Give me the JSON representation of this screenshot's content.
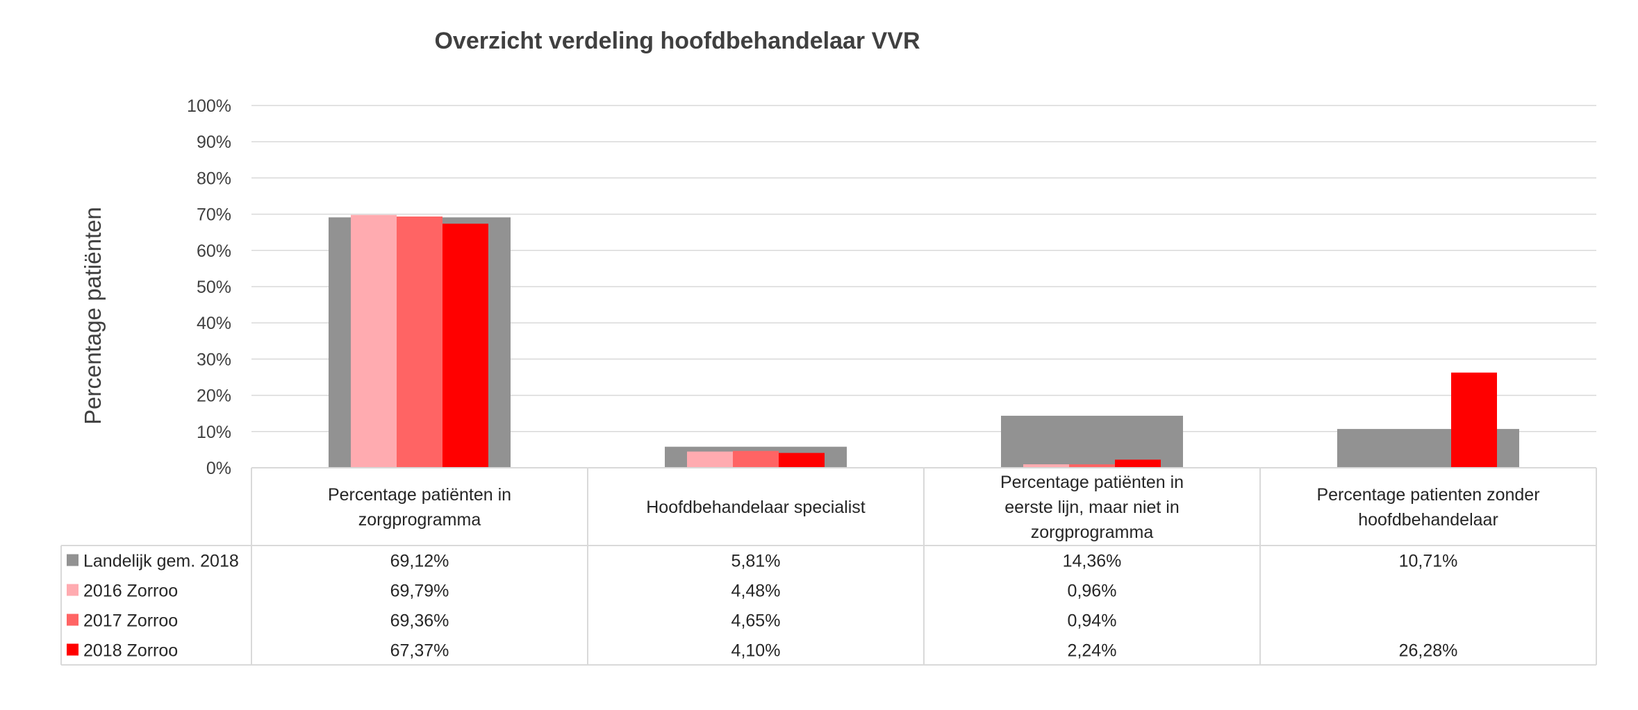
{
  "chart_data": {
    "type": "bar",
    "title": "Overzicht verdeling hoofdbehandelaar VVR",
    "ylabel": "Percentage patiënten",
    "xlabel": "",
    "ylim": [
      0,
      100
    ],
    "ytick_step": 10,
    "ytick_labels": [
      "0%",
      "10%",
      "20%",
      "30%",
      "40%",
      "50%",
      "60%",
      "70%",
      "80%",
      "90%",
      "100%"
    ],
    "grid": true,
    "legend": "data-table-left",
    "categories": [
      [
        "Percentage patiënten in",
        "zorgprogramma"
      ],
      [
        "Hoofdbehandelaar specialist"
      ],
      [
        "Percentage patiënten in",
        "eerste lijn, maar niet in",
        "zorgprogramma"
      ],
      [
        "Percentage patienten zonder",
        "hoofdbehandelaar"
      ]
    ],
    "series": [
      {
        "name": "Landelijk gem. 2018",
        "color": "#929292",
        "background": true,
        "values": [
          69.12,
          5.81,
          14.36,
          10.71
        ],
        "labels": [
          "69,12%",
          "5,81%",
          "14,36%",
          "10,71%"
        ]
      },
      {
        "name": "2016 Zorroo",
        "color": "#ffabb0",
        "values": [
          69.79,
          4.48,
          0.96,
          null
        ],
        "labels": [
          "69,79%",
          "4,48%",
          "0,96%",
          ""
        ]
      },
      {
        "name": "2017 Zorroo",
        "color": "#ff6464",
        "values": [
          69.36,
          4.65,
          0.94,
          null
        ],
        "labels": [
          "69,36%",
          "4,65%",
          "0,94%",
          ""
        ]
      },
      {
        "name": "2018 Zorroo",
        "color": "#ff0000",
        "values": [
          67.37,
          4.1,
          2.24,
          26.28
        ],
        "labels": [
          "67,37%",
          "4,10%",
          "2,24%",
          "26,28%"
        ]
      }
    ]
  }
}
